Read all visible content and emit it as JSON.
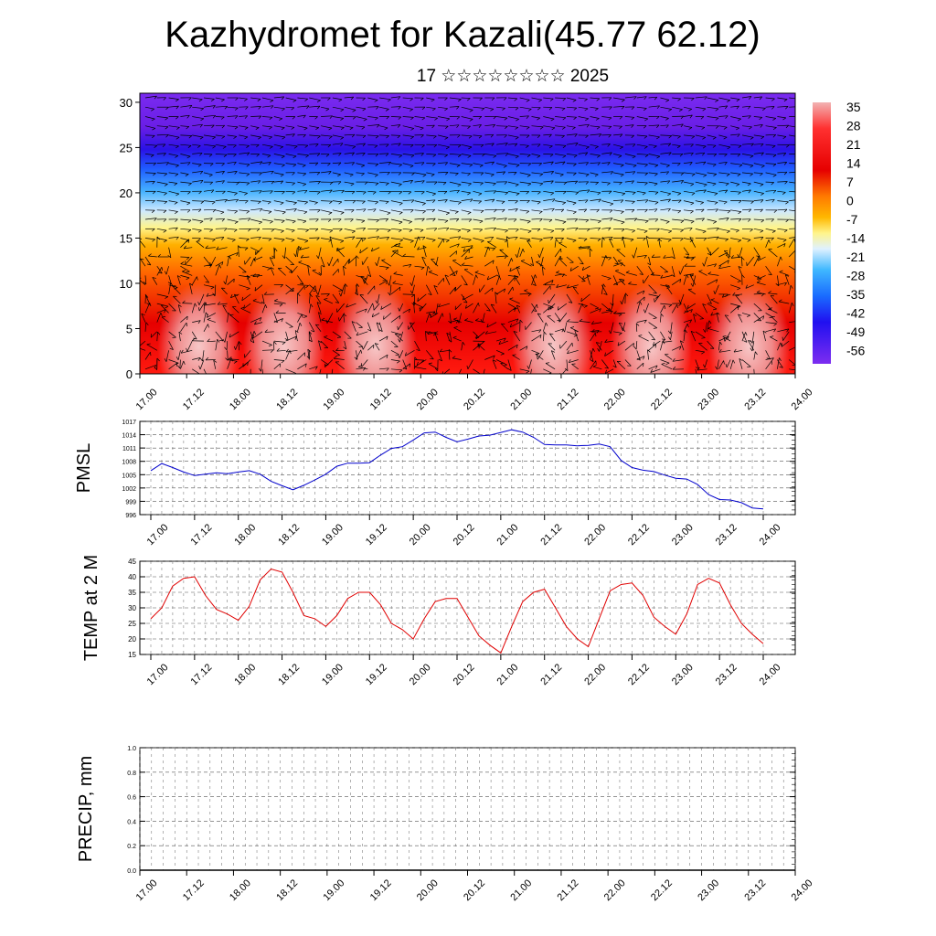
{
  "header": {
    "title": "Kazhydromet for Kazali(45.77 62.12)",
    "subtitle": "17 ☆☆☆☆☆☆☆☆ 2025"
  },
  "chart_data": [
    {
      "type": "heatmap",
      "title": "",
      "xlabel": "",
      "ylabel": "",
      "x_tick_labels": [
        "17.00",
        "17.12",
        "18.00",
        "18.12",
        "19.00",
        "19.12",
        "20.00",
        "20.12",
        "21.00",
        "21.12",
        "22.00",
        "22.12",
        "23.00",
        "23.12",
        "24.00"
      ],
      "y_ticks": [
        0,
        5,
        10,
        15,
        20,
        25,
        30
      ],
      "ylim": [
        0,
        31
      ],
      "colorbar_labels": [
        "35",
        "28",
        "21",
        "14",
        "7",
        "0",
        "-7",
        "-14",
        "-21",
        "-28",
        "-35",
        "-42",
        "-49",
        "-56"
      ],
      "colors": {
        "warm": "#ff1a10",
        "hot": "#f2b3b3",
        "cold": "#6a1ee6",
        "neutral": "#fff48a"
      },
      "overlay": "wind vectors"
    },
    {
      "type": "line",
      "ylabel": "PMSL",
      "y_ticks": [
        996,
        999,
        1002,
        1005,
        1008,
        1011,
        1014,
        1017
      ],
      "ylim": [
        996,
        1017
      ],
      "x_tick_labels": [
        "17.00",
        "17.12",
        "18.00",
        "18.12",
        "19.00",
        "19.12",
        "20.00",
        "20.12",
        "21.00",
        "21.12",
        "22.00",
        "22.12",
        "23.00",
        "23.12",
        "24.00"
      ],
      "grid": true,
      "color": "#0000cc",
      "values": [
        1005.9,
        1007.5,
        1006.6,
        1005.6,
        1004.8,
        1005.1,
        1005.4,
        1005.2,
        1005.6,
        1005.9,
        1005.1,
        1003.5,
        1002.5,
        1001.6,
        1002.6,
        1003.8,
        1005.1,
        1006.9,
        1007.6,
        1007.6,
        1007.7,
        1009.4,
        1010.9,
        1011.3,
        1012.8,
        1014.4,
        1014.6,
        1013.4,
        1012.4,
        1013.0,
        1013.7,
        1013.9,
        1014.5,
        1015.1,
        1014.6,
        1013.4,
        1011.8,
        1011.7,
        1011.7,
        1011.5,
        1011.6,
        1011.9,
        1011.3,
        1008.2,
        1006.6,
        1006.0,
        1005.7,
        1004.9,
        1004.2,
        1004.0,
        1002.8,
        1000.5,
        999.4,
        999.3,
        998.7,
        997.5,
        997.3
      ]
    },
    {
      "type": "line",
      "ylabel": "TEMP at 2 M",
      "y_ticks": [
        15,
        20,
        25,
        30,
        35,
        40,
        45
      ],
      "ylim": [
        15,
        45
      ],
      "x_tick_labels": [
        "17.00",
        "17.12",
        "18.00",
        "18.12",
        "19.00",
        "19.12",
        "20.00",
        "20.12",
        "21.00",
        "21.12",
        "22.00",
        "22.12",
        "23.00",
        "23.12",
        "24.00"
      ],
      "grid": true,
      "color": "#e00000",
      "values": [
        26.5,
        30,
        37,
        39.5,
        40,
        34,
        29.5,
        28,
        26,
        30.5,
        39,
        42.5,
        41.5,
        35,
        27.5,
        26.5,
        24,
        27.5,
        33,
        35,
        35,
        31,
        25,
        23,
        20,
        26.5,
        32,
        33,
        33,
        27,
        21,
        18,
        15.5,
        24,
        32,
        35,
        36,
        30,
        24,
        20,
        17.5,
        26.5,
        35.5,
        37.5,
        38,
        34,
        27,
        24,
        21.5,
        28,
        37.5,
        39.5,
        38,
        31,
        25,
        21.5,
        18.5
      ]
    },
    {
      "type": "bar",
      "ylabel": "PRECIP, mm",
      "y_ticks": [
        "0.0",
        "0.2",
        "0.4",
        "0.6",
        "0.8",
        "1.0"
      ],
      "ylim": [
        0,
        1
      ],
      "x_tick_labels": [
        "17.00",
        "17.12",
        "18.00",
        "18.12",
        "19.00",
        "19.12",
        "20.00",
        "20.12",
        "21.00",
        "21.12",
        "22.00",
        "22.12",
        "23.00",
        "23.12",
        "24.00"
      ],
      "grid": true,
      "values": []
    }
  ]
}
